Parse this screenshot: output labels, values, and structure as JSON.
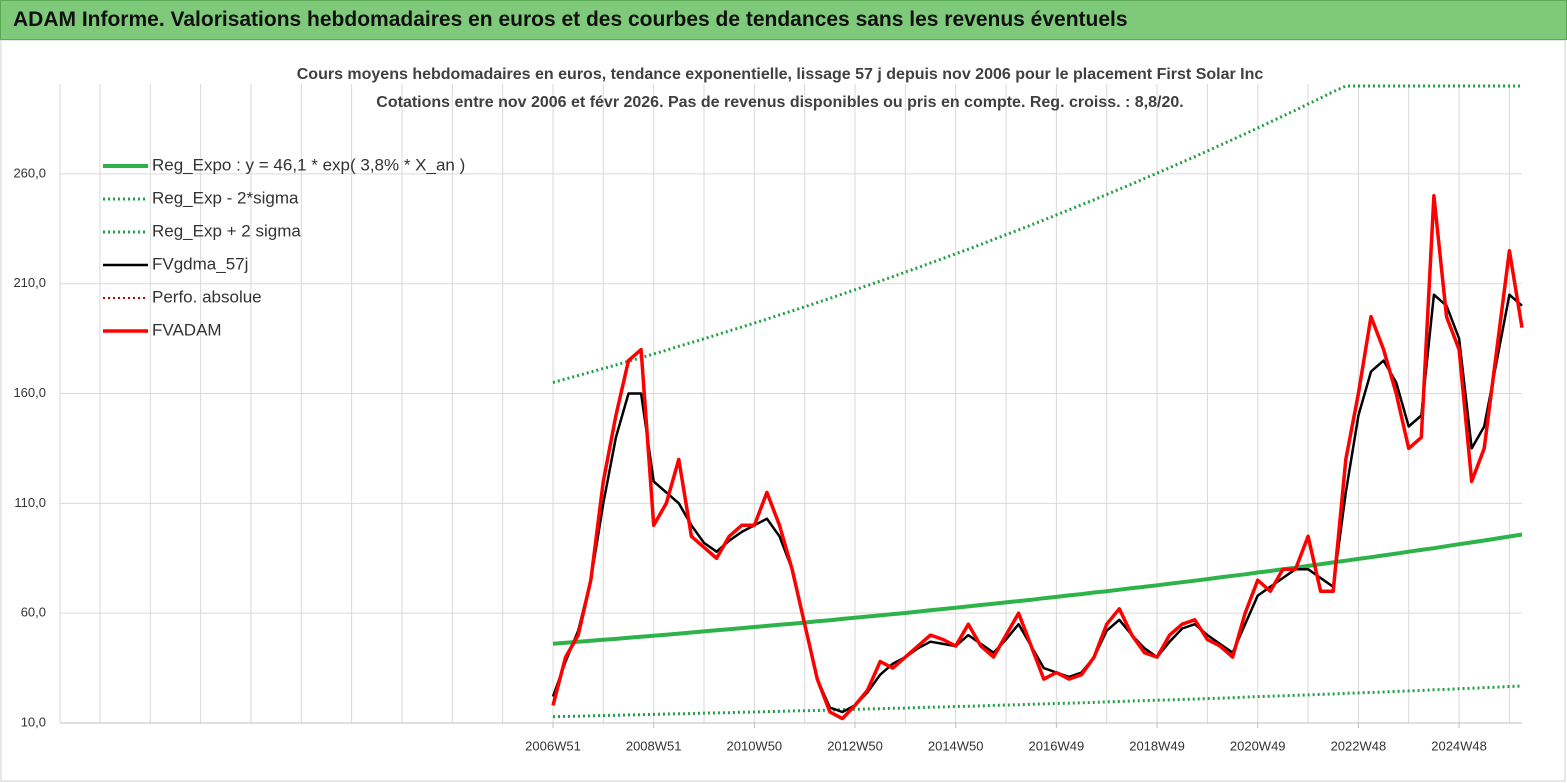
{
  "header": {
    "title": "ADAM Informe. Valorisations hebdomadaires en euros et des courbes de tendances sans les revenus éventuels"
  },
  "chart_data": {
    "type": "line",
    "title": "Cours moyens hebdomadaires en euros, tendance exponentielle, lissage 57 j depuis nov 2006 pour le placement First Solar Inc",
    "subtitle": "Cotations entre nov 2006 et févr 2026. Pas de revenus disponibles ou pris en compte. Reg. croiss. : 8,8/20.",
    "legend": "upper left",
    "grid": true,
    "ylim": [
      10,
      300
    ],
    "yticks": [
      {
        "value": 10,
        "label": "10,0"
      },
      {
        "value": 60,
        "label": "60,0"
      },
      {
        "value": 110,
        "label": "110,0"
      },
      {
        "value": 160,
        "label": "160,0"
      },
      {
        "value": 210,
        "label": "210,0"
      },
      {
        "value": 260,
        "label": "260,0"
      }
    ],
    "categories": [
      "2006W51",
      null,
      null,
      null,
      null,
      null,
      null,
      null,
      "2008W51",
      null,
      null,
      null,
      null,
      null,
      null,
      null,
      "2010W50",
      null,
      null,
      null,
      null,
      null,
      null,
      null,
      "2012W50",
      null,
      null,
      null,
      null,
      null,
      null,
      null,
      "2014W50",
      null,
      null,
      null,
      null,
      null,
      null,
      null,
      "2016W49",
      null,
      null,
      null,
      null,
      null,
      null,
      null,
      "2018W49",
      null,
      null,
      null,
      null,
      null,
      null,
      null,
      "2020W49",
      null,
      null,
      null,
      null,
      null,
      null,
      null,
      "2022W48",
      null,
      null,
      null,
      null,
      null,
      null,
      null,
      "2024W48",
      null,
      null,
      null,
      null,
      null
    ],
    "series": [
      {
        "name": "Reg_Expo : y = 46,1 * exp( 3,8% *  X_an )",
        "color": "#2db34a",
        "style": "solid",
        "width": 4,
        "values": [
          46.1,
          46.5,
          47.0,
          47.4,
          47.9,
          48.3,
          48.8,
          49.3,
          49.7,
          50.2,
          50.7,
          51.2,
          51.7,
          52.2,
          52.7,
          53.2,
          53.7,
          54.2,
          54.7,
          55.2,
          55.7,
          56.3,
          56.8,
          57.4,
          57.9,
          58.5,
          59.0,
          59.6,
          60.1,
          60.7,
          61.3,
          61.9,
          62.5,
          63.1,
          63.7,
          64.3,
          64.9,
          65.5,
          66.1,
          66.8,
          67.4,
          68.1,
          68.7,
          69.4,
          70.0,
          70.7,
          71.4,
          72.0,
          72.7,
          73.4,
          74.1,
          74.8,
          75.5,
          76.3,
          77.0,
          77.7,
          78.5,
          79.2,
          80.0,
          80.7,
          81.5,
          82.3,
          83.1,
          83.9,
          84.7,
          85.5,
          86.3,
          87.1,
          88.0,
          88.8,
          89.6,
          90.5,
          91.4,
          92.2,
          93.1,
          94.0,
          94.9,
          95.8
        ]
      },
      {
        "name": "Reg_Exp - 2*sigma",
        "color": "#22a045",
        "style": "dotted",
        "width": 3,
        "values": [
          12.9,
          13.0,
          13.1,
          13.3,
          13.4,
          13.5,
          13.7,
          13.8,
          13.9,
          14.1,
          14.2,
          14.3,
          14.5,
          14.6,
          14.7,
          14.9,
          15.0,
          15.2,
          15.3,
          15.5,
          15.6,
          15.7,
          15.9,
          16.1,
          16.2,
          16.4,
          16.5,
          16.7,
          16.8,
          17.0,
          17.2,
          17.3,
          17.5,
          17.6,
          17.8,
          18.0,
          18.2,
          18.3,
          18.5,
          18.7,
          18.9,
          19.0,
          19.2,
          19.4,
          19.6,
          19.8,
          20.0,
          20.2,
          20.4,
          20.5,
          20.7,
          20.9,
          21.1,
          21.3,
          21.5,
          21.8,
          22.0,
          22.2,
          22.4,
          22.6,
          22.8,
          23.0,
          23.2,
          23.5,
          23.7,
          23.9,
          24.1,
          24.4,
          24.6,
          24.8,
          25.1,
          25.3,
          25.6,
          25.8,
          26.1,
          26.3,
          26.6,
          26.8
        ]
      },
      {
        "name": "Reg_Exp + 2 sigma",
        "color": "#22a045",
        "style": "dotted",
        "width": 3,
        "values": [
          165.0,
          166.6,
          168.2,
          169.8,
          171.4,
          173.0,
          174.7,
          176.3,
          178.0,
          179.7,
          181.5,
          183.2,
          184.9,
          186.7,
          188.5,
          190.3,
          192.1,
          193.9,
          195.8,
          197.6,
          199.5,
          201.4,
          203.3,
          205.3,
          207.2,
          209.2,
          211.2,
          213.2,
          215.3,
          217.3,
          219.4,
          221.5,
          223.6,
          225.7,
          227.9,
          230.1,
          232.3,
          234.5,
          236.7,
          239.0,
          241.3,
          243.6,
          245.9,
          248.2,
          250.6,
          253.0,
          255.4,
          257.9,
          260.3,
          262.8,
          265.3,
          267.8,
          270.4,
          273.0,
          275.6,
          278.2,
          280.9,
          283.6,
          286.3,
          289.0,
          291.8,
          294.5,
          297.4,
          300,
          300,
          300,
          300,
          300,
          300,
          300,
          300,
          300,
          300,
          300,
          300,
          300,
          300,
          300
        ]
      },
      {
        "name": "FVgdma_57j",
        "color": "#000000",
        "style": "solid",
        "width": 2.5,
        "values": [
          22,
          38,
          52,
          75,
          110,
          140,
          160,
          160,
          120,
          115,
          110,
          100,
          92,
          88,
          93,
          97,
          100,
          103,
          95,
          80,
          55,
          30,
          17,
          15,
          18,
          24,
          32,
          37,
          40,
          44,
          47,
          46,
          45,
          50,
          46,
          42,
          48,
          55,
          45,
          35,
          33,
          31,
          33,
          40,
          52,
          57,
          50,
          44,
          40,
          47,
          53,
          55,
          50,
          46,
          42,
          55,
          68,
          72,
          76,
          80,
          80,
          76,
          72,
          115,
          150,
          170,
          175,
          165,
          145,
          150,
          205,
          200,
          185,
          135,
          145,
          175,
          205,
          200
        ]
      },
      {
        "name": "Perfo. absolue",
        "color": "#c00000",
        "style": "dotted",
        "width": 2,
        "values": [
          null,
          null,
          null,
          null,
          null,
          null,
          null,
          null,
          null,
          null,
          null,
          null,
          null,
          null,
          null,
          null,
          null,
          null,
          null,
          null,
          null,
          null,
          null,
          null,
          null,
          null,
          null,
          null,
          null,
          null,
          null,
          null,
          null,
          null,
          null,
          null,
          null,
          null,
          null,
          null,
          null,
          null,
          null,
          null,
          null,
          null,
          null,
          null,
          null,
          null,
          null,
          null,
          null,
          null,
          null,
          null,
          null,
          null,
          null,
          null,
          null,
          null,
          null,
          null,
          null,
          null,
          null,
          null,
          null,
          null,
          null,
          null,
          null,
          null,
          null,
          null,
          null,
          null
        ]
      },
      {
        "name": "FVADAM",
        "color": "#ff0000",
        "style": "solid",
        "width": 3.5,
        "values": [
          18,
          40,
          50,
          75,
          120,
          150,
          175,
          180,
          100,
          110,
          130,
          95,
          90,
          85,
          95,
          100,
          100,
          115,
          100,
          80,
          55,
          30,
          15,
          12,
          18,
          25,
          38,
          35,
          40,
          45,
          50,
          48,
          45,
          55,
          45,
          40,
          50,
          60,
          45,
          30,
          33,
          30,
          32,
          40,
          55,
          62,
          50,
          42,
          40,
          50,
          55,
          57,
          48,
          45,
          40,
          60,
          75,
          70,
          80,
          80,
          95,
          70,
          70,
          130,
          160,
          195,
          180,
          160,
          135,
          140,
          250,
          195,
          180,
          120,
          135,
          180,
          225,
          190
        ]
      }
    ]
  }
}
